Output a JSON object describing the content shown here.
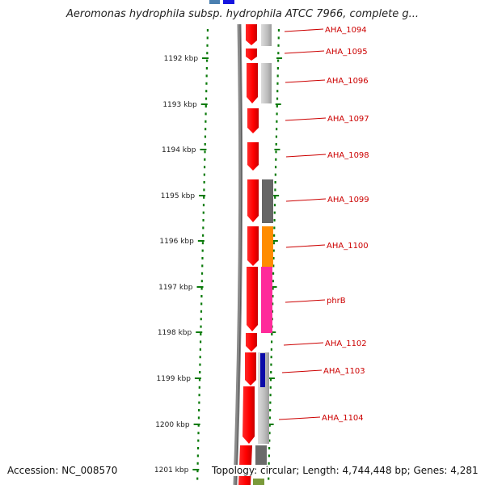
{
  "title": "Aeromonas hydrophila subsp. hydrophila ATCC 7966, complete g...",
  "footer": {
    "accession": "Accession: NC_008570",
    "topology": "Topology: circular; Length: 4,744,448 bp; Genes: 4,281"
  },
  "ruler_ticks": [
    "1192 kbp",
    "1193 kbp",
    "1194 kbp",
    "1195 kbp",
    "1196 kbp",
    "1197 kbp",
    "1198 kbp",
    "1199 kbp",
    "1200 kbp",
    "1201 kbp"
  ],
  "genes": [
    {
      "label": "AHA_1094"
    },
    {
      "label": "AHA_1095"
    },
    {
      "label": "AHA_1096"
    },
    {
      "label": "AHA_1097"
    },
    {
      "label": "AHA_1098"
    },
    {
      "label": "AHA_1099"
    },
    {
      "label": "AHA_1100"
    },
    {
      "label": "phrB"
    },
    {
      "label": "AHA_1102"
    },
    {
      "label": "AHA_1103"
    },
    {
      "label": "AHA_1104"
    }
  ],
  "colors": {
    "cds": "#ff0000",
    "label": "#cc0000",
    "ruler": "#0a7a0a",
    "backbone": "#777777"
  }
}
